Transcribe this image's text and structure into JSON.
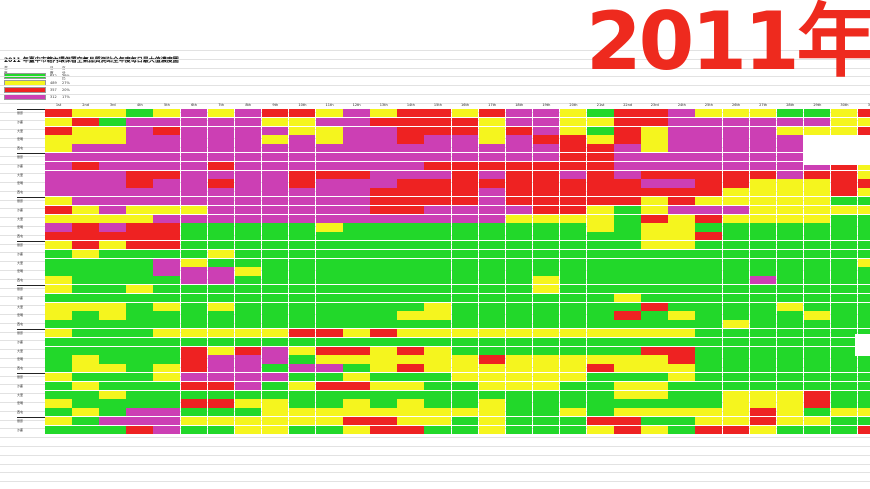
{
  "page": {
    "title": "2011 年臺中市轄內環保署空氣品質測站全年度每日最大值濃度圖",
    "year_overlay": "2011年"
  },
  "legend": {
    "headers": [
      "濃度",
      "日數",
      "百分比"
    ],
    "rows": [
      {
        "color": "#22d82a",
        "count": "642",
        "pct": "36%"
      },
      {
        "color": "#f5f51e",
        "count": "489",
        "pct": "27%"
      },
      {
        "color": "#ee2222",
        "count": "357",
        "pct": "20%"
      },
      {
        "color": "#cc3fb4",
        "count": "312",
        "pct": "17%"
      }
    ]
  },
  "colors": {
    "G": "#22d82a",
    "Y": "#f5f51e",
    "R": "#ee2222",
    "P": "#cc3fb4",
    "W": "#ffffff"
  },
  "days": [
    "1st",
    "2nd",
    "3rd",
    "4th",
    "5th",
    "6th",
    "7th",
    "8th",
    "9th",
    "10th",
    "11th",
    "12th",
    "13th",
    "14th",
    "15th",
    "16th",
    "17th",
    "18th",
    "19th",
    "20th",
    "21st",
    "22nd",
    "23rd",
    "24th",
    "25th",
    "26th",
    "27th",
    "28th",
    "29th",
    "30th",
    "31st"
  ],
  "stations": [
    "豐原",
    "沙鹿",
    "大里",
    "忠明",
    "西屯"
  ],
  "heatmap_rows": [
    "RYYGYPYPRRYPYRRYRPPYGRRPYYYGGYR",
    "YRGPPPPPYYPPRRRRYPPYYRRPPPPPPYY",
    "RYYPRPPPPYYPPRRRYRPYGRYPPPPYYYR",
    "YYYPPPPPYPYPPRPPYPRRYRYPPPPPPYY",
    "YPPPPPPPPPPPPPPPPPPRRPYPPPPPPYR",
    "PPPPPPPPPPPPPPPPPPPRRPPPPPPPPYY",
    "PRPPPPRPPPPPPPRRRRRRRPPPPPPPPRY",
    "PPPRRPPPPRRRPPPRPRRPRPRRRRRPRRY",
    "PPPRPPRPPRPPPRRRRRRRRRPPRRYYYRR",
    "PPPPPPPPPPPPRRRRPRRRRRRRRYYYYRY",
    "YPPPPPPPPPPPRRRRPRRRRRYRYYYYYGG",
    "RYPYYYPPPPPPRRPPPPRRYGYPPPYYYYY",
    "YYYYPPPPPPPPPPPPPYYYYGRYRYYYYGG",
    "PRPRRGGGGGYGGGGGGGGGYGYYGGGGGGG",
    "RRRRRGGGGGGGGGGGGGGGGGYYRGGGGGG",
    "YRYRRGGGGGGGGGGGGGGGGGYYGGGGGGG",
    "GYGGGGYGGGGGGGGGGGGGGGGGGGGGGGG",
    "GGGGPYGGGGGGGGGGGGGGGGGGGGGGGGY",
    "GGGGPPPYGGGGGGGGGGGGGGGGGGGGGGG",
    "YGGGGPPGGGGGGGGGGGYGGGGGGGPGGGG",
    "YGGYGGGGGGGGGGGGGGYGGGGGGGGGGGG",
    "GGGGGGGGGGGGGGGGGGGGGYGGGGGGGGG",
    "YYYGYGYGGGGGGGYGGGGGGGRGGGGYGGG",
    "YGYGGGGGGGGGGYYGGGGGGRGYGGGGYGG",
    "GGGGGGGGGGGGGGGGGGGGGGGGGYGGGGG",
    "YGGGYYYYYRRYRYYYYYYYYYYYGGGGGGG",
    "GGGGGGGGGGGGGGGGGGGGGGGGGGGGGGG",
    "GGGGGRYRPYRRYRYGGGGGGGRRGGGGGGG",
    "GYGGGRPPPGYYYYYYRYYYYYYRGGGGGGG",
    "GYYGYRPPGPPGYRYYYYYYRYYYGGGGGGG",
    "YGGGYPPPPGGYGGGYYYYYGGGYGGGGGGG",
    "GYGGGRRPGYRRYYGGYYYGGYYGGGGGGGG",
    "GGYGGGGGGGGGGGGGGGGGGYYGGYYYRGG",
    "YGGGGRRYYGGYGYGGYGGGGGGGGYYYRGG",
    "GYGPPGGGYYYYYYYYYGGYGYYYYYRYGYY",
    "YGPPPYYYYYYRRYYGYGGGRRGGYYRYYGG",
    "GGGRPGGYYGGYRRGGYGGGYRYGRRYGGGR"
  ]
}
